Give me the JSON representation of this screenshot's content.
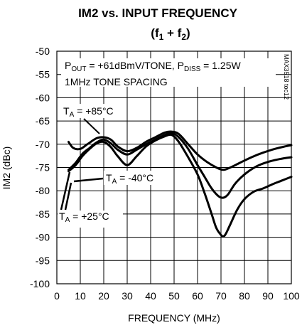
{
  "chart_data": {
    "type": "line",
    "title": "IM2 vs. INPUT FREQUENCY",
    "subtitle": {
      "pre": "(f",
      "sub1": "1",
      "mid": " + f",
      "sub2": "2",
      "post": ")"
    },
    "xlabel": "FREQUENCY (MHz)",
    "ylabel": "IM2 (dBc)",
    "xlim": [
      0,
      100
    ],
    "ylim": [
      -100,
      -50
    ],
    "x_ticks": [
      0,
      10,
      20,
      30,
      40,
      50,
      60,
      70,
      80,
      90,
      100
    ],
    "y_ticks": [
      -50,
      -55,
      -60,
      -65,
      -70,
      -75,
      -80,
      -85,
      -90,
      -95,
      -100
    ],
    "grid": true,
    "conditions": {
      "line1": {
        "a": "P",
        "a_sub": "OUT",
        "b": " = +61dBmV/TONE, P",
        "b_sub": "DISS",
        "c": " = 1.25W"
      },
      "line2": "1MHz TONE SPACING"
    },
    "code_label": "MAX3518 toc12",
    "series": [
      {
        "name": "TA = +85°C",
        "label": {
          "pre": "T",
          "sub": "A",
          "post": " = +85°C"
        },
        "x": [
          5,
          7,
          10,
          13,
          17,
          20,
          23,
          26,
          30,
          34,
          38,
          42,
          46,
          49,
          52,
          56,
          60,
          64,
          68,
          71,
          74,
          78,
          83,
          88,
          93,
          97,
          100
        ],
        "y": [
          -69.5,
          -70.8,
          -71.0,
          -70.0,
          -68.7,
          -68.5,
          -69.0,
          -70.5,
          -71.5,
          -70.8,
          -69.5,
          -68.5,
          -67.5,
          -67.3,
          -67.8,
          -70.0,
          -72.2,
          -73.8,
          -75.0,
          -75.5,
          -75.0,
          -74.0,
          -72.8,
          -71.8,
          -71.0,
          -70.5,
          -70.2
        ]
      },
      {
        "name": "TA = -40°C",
        "label": {
          "pre": "T",
          "sub": "A",
          "post": " = -40°C"
        },
        "x": [
          5,
          8,
          11,
          14,
          17,
          20,
          23,
          26,
          30,
          34,
          38,
          42,
          46,
          49,
          52,
          56,
          60,
          63,
          66,
          69,
          71,
          73,
          76,
          80,
          85,
          90,
          95,
          100
        ],
        "y": [
          -75.5,
          -74.0,
          -72.0,
          -70.8,
          -69.6,
          -69.0,
          -69.8,
          -71.2,
          -72.2,
          -71.2,
          -70.0,
          -69.0,
          -68.0,
          -67.6,
          -68.5,
          -71.0,
          -74.5,
          -77.0,
          -79.5,
          -81.2,
          -81.5,
          -80.8,
          -78.5,
          -76.5,
          -74.8,
          -73.8,
          -73.2,
          -72.8
        ]
      },
      {
        "name": "TA = +25°C",
        "label": {
          "pre": "T",
          "sub": "A",
          "post": " = +25°C"
        },
        "x": [
          5,
          8,
          11,
          14,
          17,
          20,
          23,
          26,
          30,
          34,
          38,
          42,
          46,
          49,
          52,
          56,
          60,
          63,
          66,
          68,
          70,
          71,
          72,
          74,
          77,
          80,
          84,
          88,
          92,
          96,
          100
        ],
        "y": [
          -75.8,
          -74.5,
          -72.5,
          -71.0,
          -69.8,
          -69.5,
          -70.6,
          -72.6,
          -74.5,
          -72.6,
          -70.5,
          -69.2,
          -68.3,
          -68.0,
          -69.5,
          -72.8,
          -76.5,
          -80.5,
          -85.0,
          -88.0,
          -89.5,
          -89.8,
          -89.3,
          -87.2,
          -84.0,
          -81.8,
          -80.2,
          -79.5,
          -78.6,
          -77.8,
          -77.0
        ]
      }
    ]
  }
}
